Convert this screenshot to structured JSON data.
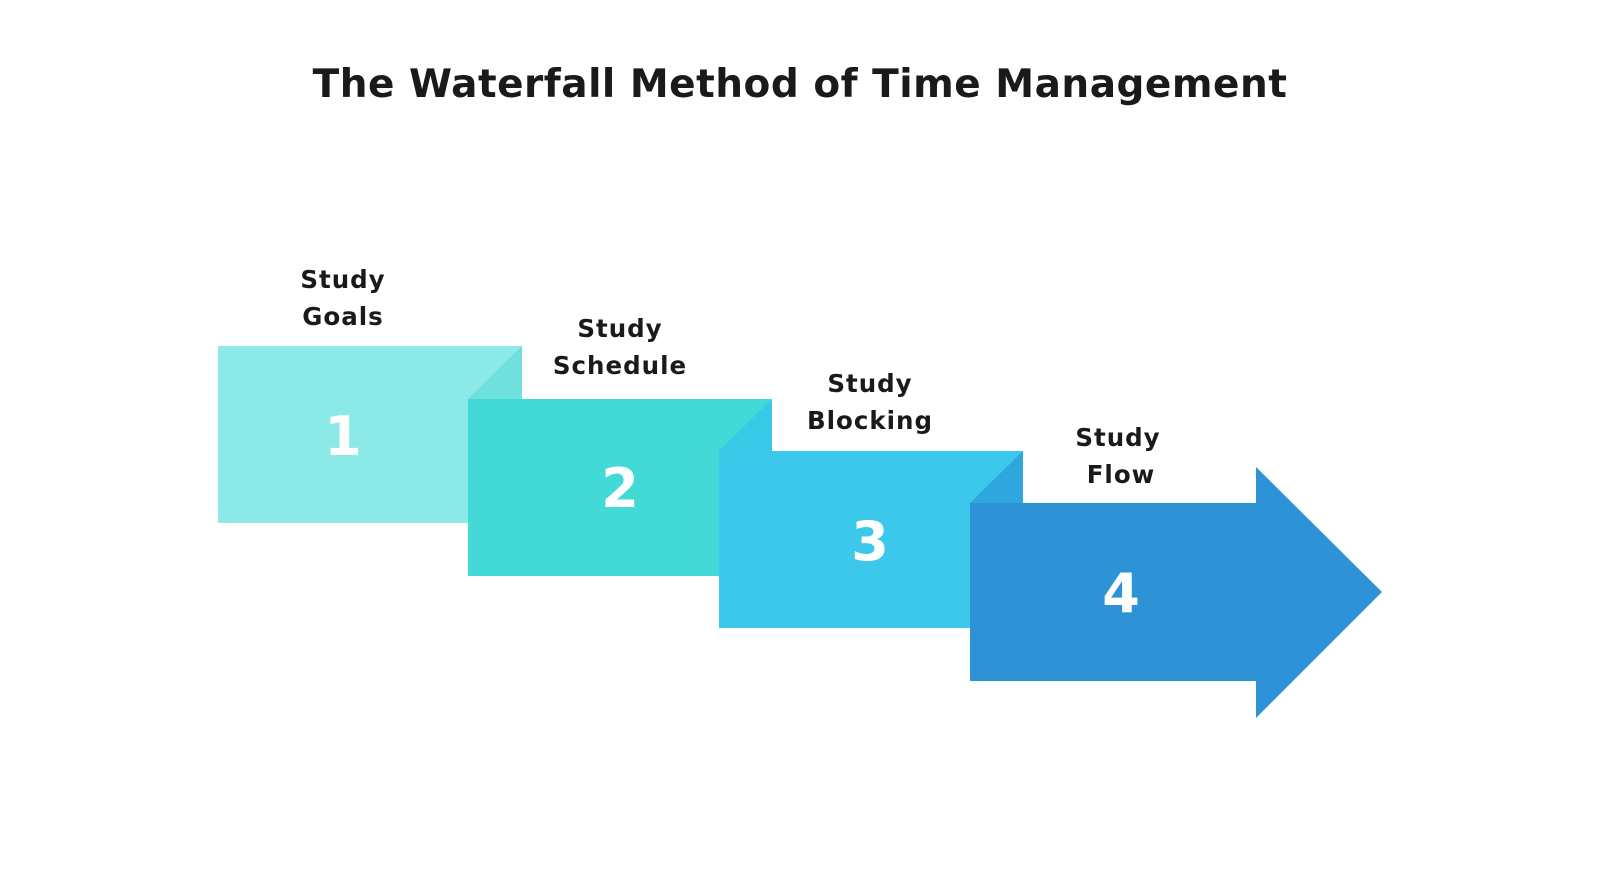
{
  "title": "The Waterfall Method of Time Management",
  "steps": [
    {
      "number": "1",
      "label_line1": "Study",
      "label_line2": "Goals",
      "color": "#8BE9E8",
      "fold_color": "#6FE0DD"
    },
    {
      "number": "2",
      "label_line1": "Study",
      "label_line2": "Schedule",
      "color": "#43D9D6",
      "fold_color": "#38C9E6"
    },
    {
      "number": "3",
      "label_line1": "Study",
      "label_line2": "Blocking",
      "color": "#3BC8EA",
      "fold_color": "#2FA6DE"
    },
    {
      "number": "4",
      "label_line1": "Study",
      "label_line2": "Flow",
      "color": "#2E93D6",
      "fold_color": "#2E93D6"
    }
  ]
}
